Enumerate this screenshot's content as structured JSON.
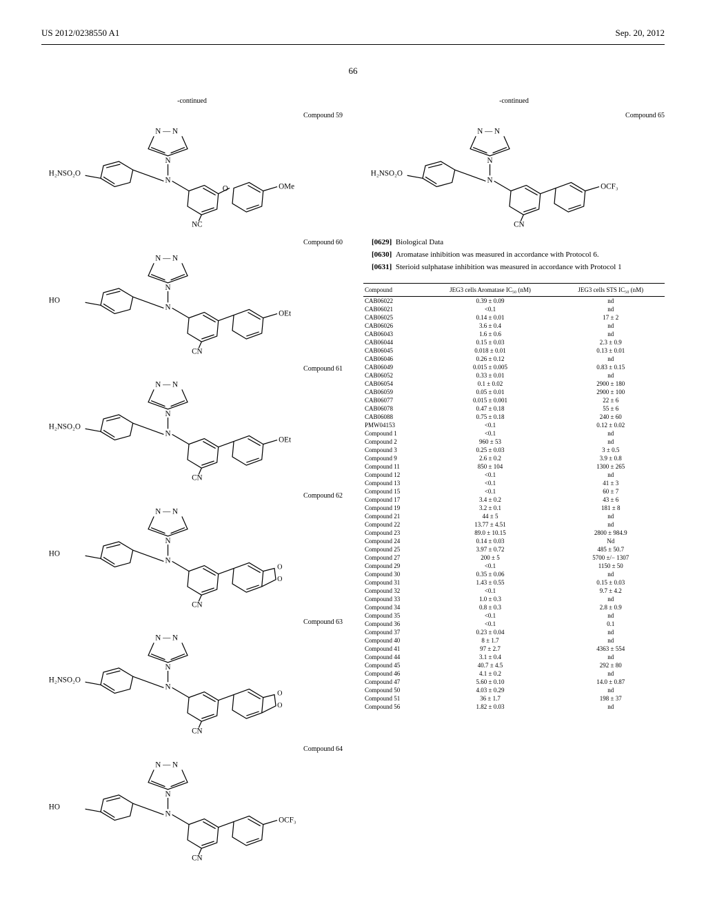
{
  "header": {
    "left": "US 2012/0238550 A1",
    "right": "Sep. 20, 2012",
    "page_number": "66"
  },
  "left_column": {
    "continued": "-continued",
    "compounds": [
      {
        "label": "Compound 59",
        "left_sub": "H₂NSO₂O",
        "right_sub": "OMe",
        "bottom_sub": "NC",
        "bridge": "O"
      },
      {
        "label": "Compound 60",
        "left_sub": "HO",
        "right_sub": "OEt",
        "bottom_sub": "CN",
        "bridge": ""
      },
      {
        "label": "Compound 61",
        "left_sub": "H₂NSO₂O",
        "right_sub": "OEt",
        "bottom_sub": "CN",
        "bridge": ""
      },
      {
        "label": "Compound 62",
        "left_sub": "HO",
        "right_sub": "dioxole",
        "bottom_sub": "CN",
        "bridge": ""
      },
      {
        "label": "Compound 63",
        "left_sub": "H₂NSO₂O",
        "right_sub": "dioxole",
        "bottom_sub": "CN",
        "bridge": ""
      },
      {
        "label": "Compound 64",
        "left_sub": "HO",
        "right_sub": "OCF₃",
        "bottom_sub": "CN",
        "bridge": ""
      }
    ]
  },
  "right_column": {
    "continued": "-continued",
    "top_compound": {
      "label": "Compound 65",
      "left_sub": "H₂NSO₂O",
      "right_sub": "OCF₃",
      "bottom_sub": "CN"
    },
    "paragraphs": [
      {
        "num": "[0629]",
        "text": "Biological Data"
      },
      {
        "num": "[0630]",
        "text": "Aromatase inhibition was measured in accordance with Protocol 6."
      },
      {
        "num": "[0631]",
        "text": "Sterioid sulphatase inhibition was measured in accordance with Protocol 1"
      }
    ],
    "table": {
      "headers": [
        "Compound",
        "JEG3 cells Aromatase IC₅₀ (nM)",
        "JEG3 cells STS IC₅₀ (nM)"
      ],
      "rows": [
        [
          "CAB06022",
          "0.39 ± 0.09",
          "nd"
        ],
        [
          "CAB06021",
          "<0.1",
          "nd"
        ],
        [
          "CAB06025",
          "0.14 ± 0.01",
          "17 ± 2"
        ],
        [
          "CAB06026",
          "3.6 ± 0.4",
          "nd"
        ],
        [
          "CAB06043",
          "1.6 ± 0.6",
          "nd"
        ],
        [
          "CAB06044",
          "0.15 ± 0.03",
          "2.3 ± 0.9"
        ],
        [
          "CAB06045",
          "0.018 ± 0.01",
          "0.13 ± 0.01"
        ],
        [
          "CAB06046",
          "0.26 ± 0.12",
          "nd"
        ],
        [
          "CAB06049",
          "0.015 ± 0.005",
          "0.83 ± 0.15"
        ],
        [
          "CAB06052",
          "0.33 ± 0.01",
          "nd"
        ],
        [
          "CAB06054",
          "0.1 ± 0.02",
          "2900 ± 180"
        ],
        [
          "CAB06059",
          "0.05 ± 0.01",
          "2900 ± 100"
        ],
        [
          "CAB06077",
          "0.015 ± 0.001",
          "22 ± 6"
        ],
        [
          "CAB06078",
          "0.47 ± 0.18",
          "55 ± 6"
        ],
        [
          "CAB06088",
          "0.75 ± 0.18",
          "240 ± 60"
        ],
        [
          "PMW04153",
          "<0.1",
          "0.12 ± 0.02"
        ],
        [
          "Compound 1",
          "<0.1",
          "nd"
        ],
        [
          "Compound 2",
          "960 ± 53",
          "nd"
        ],
        [
          "Compound 3",
          "0.25 ± 0.03",
          "3 ± 0.5"
        ],
        [
          "Compound 9",
          "2.6 ± 0.2",
          "3.9 ± 0.8"
        ],
        [
          "Compound 11",
          "850 ± 104",
          "1300 ± 265"
        ],
        [
          "Compound 12",
          "<0.1",
          "nd"
        ],
        [
          "Compound 13",
          "<0.1",
          "41 ± 3"
        ],
        [
          "Compound 15",
          "<0.1",
          "60 ± 7"
        ],
        [
          "Compound 17",
          "3.4 ± 0.2",
          "43 ± 6"
        ],
        [
          "Compound 19",
          "3.2 ± 0.1",
          "181 ± 8"
        ],
        [
          "Compound 21",
          "44 ± 5",
          "nd"
        ],
        [
          "Compound 22",
          "13.77 ± 4.51",
          "nd"
        ],
        [
          "Compound 23",
          "89.0 ± 10.15",
          "2800 ± 984.9"
        ],
        [
          "Compound 24",
          "0.14 ± 0.03",
          "Nd"
        ],
        [
          "Compound 25",
          "3.97 ± 0.72",
          "485 ± 50.7"
        ],
        [
          "Compound 27",
          "200 ± 5",
          "5700 ±/− 1307"
        ],
        [
          "Compound 29",
          "<0.1",
          "1150 ± 50"
        ],
        [
          "Compound 30",
          "0.35 ± 0.06",
          "nd"
        ],
        [
          "Compound 31",
          "1.43 ± 0.55",
          "0.15 ± 0.03"
        ],
        [
          "Compound 32",
          "<0.1",
          "9.7 ± 4.2"
        ],
        [
          "Compound 33",
          "1.0 ± 0.3",
          "nd"
        ],
        [
          "Compound 34",
          "0.8 ± 0.3",
          "2.8 ± 0.9"
        ],
        [
          "Compound 35",
          "<0.1",
          "nd"
        ],
        [
          "Compound 36",
          "<0.1",
          "0.1"
        ],
        [
          "Compound 37",
          "0.23 ± 0.04",
          "nd"
        ],
        [
          "Compound 40",
          "8 ± 1.7",
          "nd"
        ],
        [
          "Compound 41",
          "97 ± 2.7",
          "4363 ± 554"
        ],
        [
          "Compound 44",
          "3.1 ± 0.4",
          "nd"
        ],
        [
          "Compound 45",
          "40.7 ± 4.5",
          "292 ± 80"
        ],
        [
          "Compound 46",
          "4.1 ± 0.2",
          "nd"
        ],
        [
          "Compound 47",
          "5.60 ± 0.10",
          "14.0 ± 0.87"
        ],
        [
          "Compound 50",
          "4.03 ± 0.29",
          "nd"
        ],
        [
          "Compound 51",
          "36 ± 1.7",
          "198 ± 37"
        ],
        [
          "Compound 56",
          "1.82 ± 0.03",
          "nd"
        ]
      ]
    }
  }
}
